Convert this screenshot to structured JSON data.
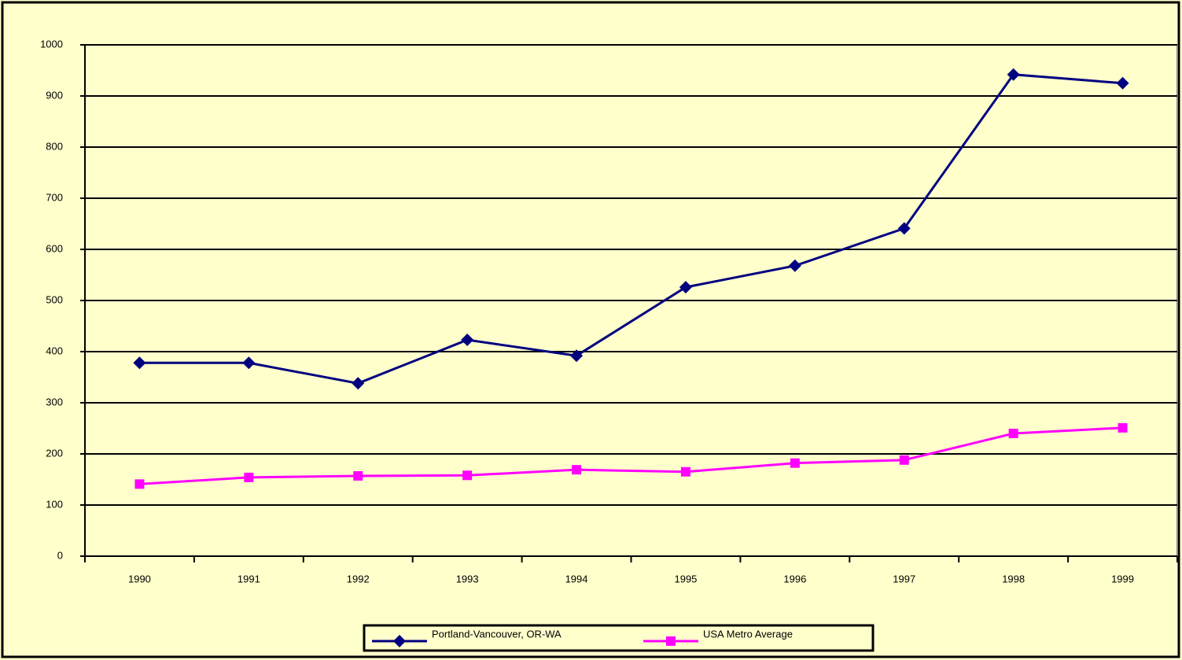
{
  "chart_data": {
    "type": "line",
    "categories": [
      "1990",
      "1991",
      "1992",
      "1993",
      "1994",
      "1995",
      "1996",
      "1997",
      "1998",
      "1999"
    ],
    "series": [
      {
        "name": "Portland-Vancouver, OR-WA",
        "color": "#000080",
        "marker": "diamond",
        "values": [
          378,
          378,
          338,
          423,
          392,
          526,
          568,
          641,
          942,
          925
        ]
      },
      {
        "name": "USA Metro Average",
        "color": "#ff00ff",
        "marker": "square",
        "values": [
          141,
          154,
          157,
          158,
          169,
          165,
          182,
          188,
          240,
          251
        ]
      }
    ],
    "ylim": [
      0,
      1000
    ],
    "yticks": [
      0,
      100,
      200,
      300,
      400,
      500,
      600,
      700,
      800,
      900,
      1000
    ],
    "grid": true,
    "legend": "bottom"
  }
}
